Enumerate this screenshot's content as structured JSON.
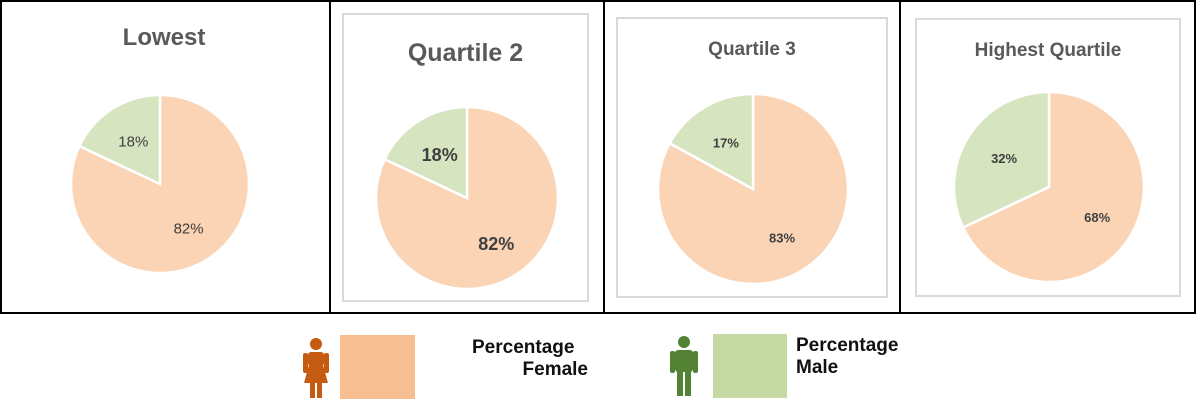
{
  "chart_data": [
    {
      "type": "pie",
      "title": "Lowest",
      "slices": [
        {
          "name": "Percentage Male",
          "value": 18,
          "label": "18%",
          "color": "#d6e4bf"
        },
        {
          "name": "Percentage Female",
          "value": 82,
          "label": "82%",
          "color": "#fad4b4"
        }
      ]
    },
    {
      "type": "pie",
      "title": "Quartile 2",
      "slices": [
        {
          "name": "Percentage Male",
          "value": 18,
          "label": "18%",
          "color": "#d6e4bf"
        },
        {
          "name": "Percentage Female",
          "value": 82,
          "label": "82%",
          "color": "#fad4b4"
        }
      ]
    },
    {
      "type": "pie",
      "title": "Quartile 3",
      "slices": [
        {
          "name": "Percentage Male",
          "value": 17,
          "label": "17%",
          "color": "#d6e4bf"
        },
        {
          "name": "Percentage Female",
          "value": 83,
          "label": "83%",
          "color": "#fad4b4"
        }
      ]
    },
    {
      "type": "pie",
      "title": "Highest Quartile",
      "slices": [
        {
          "name": "Percentage Male",
          "value": 32,
          "label": "32%",
          "color": "#d6e4bf"
        },
        {
          "name": "Percentage Female",
          "value": 68,
          "label": "68%",
          "color": "#fad4b4"
        }
      ]
    }
  ],
  "legend": {
    "female": {
      "line1": "Percentage",
      "line2": "Female",
      "icon": "female-person-icon",
      "icon_color": "#c55a11",
      "swatch_color": "#f8bf93"
    },
    "male": {
      "line1": "Percentage",
      "line2": "Male",
      "icon": "male-person-icon",
      "icon_color": "#548235",
      "swatch_color": "#c5d9a4"
    }
  },
  "colors": {
    "border": "#000000",
    "panel_frame": "#d9d9d9",
    "title": "#595959",
    "slice_label": "#404040"
  }
}
